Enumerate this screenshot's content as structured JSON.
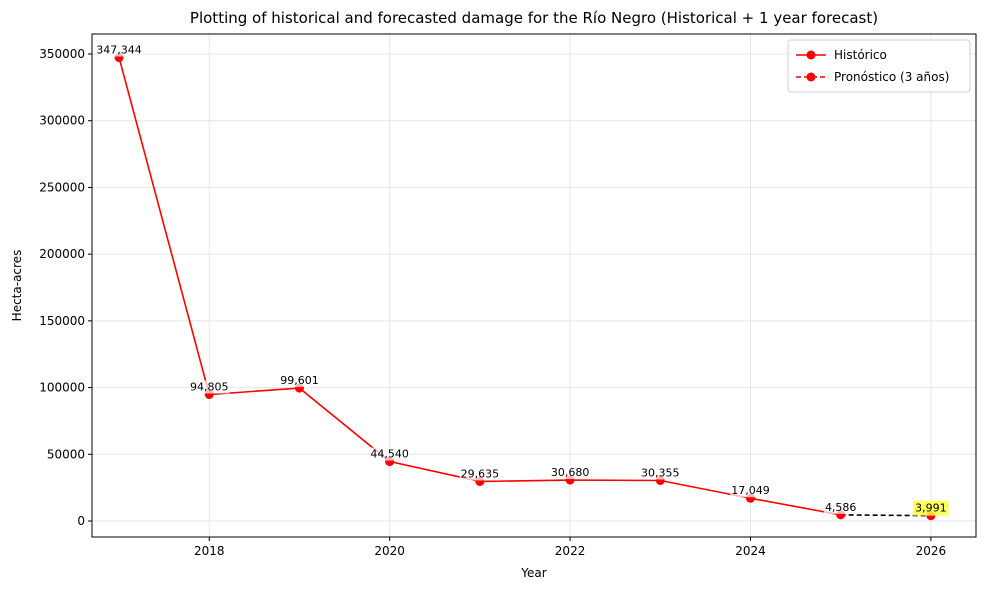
{
  "chart_data": {
    "type": "line",
    "title": "Plotting of historical and forecasted damage for the Río Negro (Historical + 1 year forecast)",
    "xlabel": "Year",
    "ylabel": "Hecta-acres",
    "xlim": [
      2016.7,
      2026.5
    ],
    "ylim": [
      -12000,
      365000
    ],
    "x_ticks": [
      2018,
      2020,
      2022,
      2024,
      2026
    ],
    "y_ticks": [
      0,
      50000,
      100000,
      150000,
      200000,
      250000,
      300000,
      350000
    ],
    "grid": true,
    "legend_position": "top-right",
    "series": [
      {
        "name": "Histórico",
        "style": "solid",
        "color": "#ff0000",
        "x": [
          2017,
          2018,
          2019,
          2020,
          2021,
          2022,
          2023,
          2024,
          2025
        ],
        "values": [
          347344,
          94805,
          99601,
          44540,
          29635,
          30680,
          30355,
          17049,
          4586
        ],
        "labels": [
          "347,344",
          "94,805",
          "99,601",
          "44,540",
          "29,635",
          "30,680",
          "30,355",
          "17,049",
          "4,586"
        ]
      },
      {
        "name": "Pronóstico (3 años)",
        "style": "dashed",
        "color": "#000000",
        "marker_color": "#ff0000",
        "x": [
          2025,
          2026
        ],
        "values": [
          4586,
          3991
        ],
        "labels": [
          "3,991"
        ],
        "label_highlight": "#ffff44"
      }
    ]
  }
}
